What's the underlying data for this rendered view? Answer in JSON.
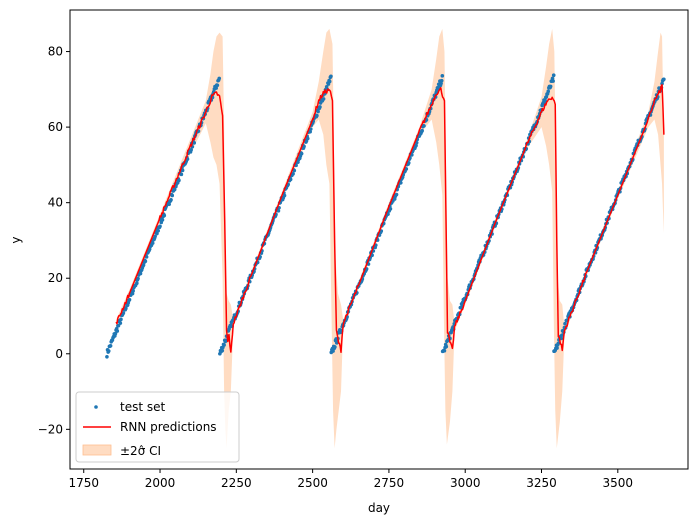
{
  "chart_data": {
    "type": "line",
    "xlabel": "day",
    "ylabel": "y",
    "xlim": [
      1705,
      3730
    ],
    "ylim": [
      -30.5,
      91
    ],
    "xticks": [
      1750,
      2000,
      2250,
      2500,
      2750,
      3000,
      3250,
      3500
    ],
    "yticks": [
      -20,
      0,
      20,
      40,
      60,
      80
    ],
    "grid": false,
    "legend_position": "lower-left",
    "colors": {
      "test_set": "#1f77b4",
      "rnn": "#ff0000",
      "ci_fill": "#ffbf90"
    },
    "cycles": [
      {
        "start": 1826,
        "end": 2195,
        "peak": 73
      },
      {
        "start": 2196,
        "end": 2560,
        "peak": 73
      },
      {
        "start": 2561,
        "end": 2925,
        "peak": 73
      },
      {
        "start": 2926,
        "end": 3290,
        "peak": 73
      },
      {
        "start": 3291,
        "end": 3652,
        "peak": 73
      }
    ],
    "series": [
      {
        "name": "test set",
        "kind": "scatter",
        "description_points": [
          [
            1826,
            0.5
          ],
          [
            1900,
            15.5
          ],
          [
            2000,
            36
          ],
          [
            2100,
            56
          ],
          [
            2195,
            73
          ],
          [
            2196,
            0.5
          ],
          [
            2300,
            21.5
          ],
          [
            2400,
            42
          ],
          [
            2500,
            62
          ],
          [
            2560,
            73
          ],
          [
            2561,
            0.5
          ],
          [
            2650,
            18.5
          ],
          [
            2750,
            39
          ],
          [
            2850,
            59
          ],
          [
            2925,
            73
          ],
          [
            2926,
            0.5
          ],
          [
            3000,
            15.5
          ],
          [
            3100,
            36
          ],
          [
            3200,
            56
          ],
          [
            3290,
            73
          ],
          [
            3291,
            0.5
          ],
          [
            3400,
            22.5
          ],
          [
            3500,
            43
          ],
          [
            3600,
            63
          ],
          [
            3652,
            73
          ]
        ]
      },
      {
        "name": "RNN predictions",
        "kind": "line",
        "points": [
          [
            1856,
            8
          ],
          [
            1900,
            16
          ],
          [
            2000,
            36
          ],
          [
            2100,
            55
          ],
          [
            2150,
            64
          ],
          [
            2170,
            68
          ],
          [
            2185,
            69
          ],
          [
            2195,
            68
          ],
          [
            2205,
            63
          ],
          [
            2212,
            35
          ],
          [
            2218,
            6
          ],
          [
            2222,
            3
          ],
          [
            2226,
            5
          ],
          [
            2232,
            0
          ],
          [
            2240,
            8
          ],
          [
            2300,
            21
          ],
          [
            2400,
            42
          ],
          [
            2500,
            62
          ],
          [
            2520,
            67
          ],
          [
            2535,
            69
          ],
          [
            2555,
            70
          ],
          [
            2565,
            67
          ],
          [
            2572,
            30
          ],
          [
            2578,
            6
          ],
          [
            2585,
            3
          ],
          [
            2593,
            1
          ],
          [
            2600,
            8
          ],
          [
            2650,
            18
          ],
          [
            2750,
            39
          ],
          [
            2850,
            59
          ],
          [
            2890,
            66
          ],
          [
            2905,
            69
          ],
          [
            2920,
            70
          ],
          [
            2932,
            67
          ],
          [
            2938,
            30
          ],
          [
            2942,
            6
          ],
          [
            2950,
            3
          ],
          [
            2958,
            1
          ],
          [
            2965,
            7
          ],
          [
            3000,
            14
          ],
          [
            3100,
            35
          ],
          [
            3200,
            55
          ],
          [
            3250,
            64
          ],
          [
            3270,
            67
          ],
          [
            3285,
            68
          ],
          [
            3295,
            66
          ],
          [
            3300,
            30
          ],
          [
            3305,
            5
          ],
          [
            3312,
            3
          ],
          [
            3318,
            1
          ],
          [
            3325,
            6
          ],
          [
            3400,
            22
          ],
          [
            3500,
            42
          ],
          [
            3600,
            62
          ],
          [
            3620,
            67
          ],
          [
            3635,
            69
          ],
          [
            3645,
            71
          ],
          [
            3648,
            65
          ],
          [
            3651,
            58
          ]
        ]
      },
      {
        "name": "±2σ̂ CI",
        "kind": "area",
        "upper": [
          [
            1856,
            9
          ],
          [
            1900,
            17
          ],
          [
            2000,
            37
          ],
          [
            2100,
            57
          ],
          [
            2150,
            67
          ],
          [
            2165,
            74
          ],
          [
            2175,
            80
          ],
          [
            2185,
            84
          ],
          [
            2195,
            85
          ],
          [
            2205,
            84
          ],
          [
            2210,
            60
          ],
          [
            2214,
            30
          ],
          [
            2218,
            16
          ],
          [
            2225,
            14
          ],
          [
            2232,
            13
          ],
          [
            2240,
            9
          ],
          [
            2300,
            22
          ],
          [
            2400,
            43
          ],
          [
            2500,
            64
          ],
          [
            2520,
            72
          ],
          [
            2535,
            80
          ],
          [
            2545,
            85
          ],
          [
            2555,
            86
          ],
          [
            2565,
            82
          ],
          [
            2570,
            55
          ],
          [
            2575,
            25
          ],
          [
            2583,
            16
          ],
          [
            2593,
            13
          ],
          [
            2600,
            9
          ],
          [
            2650,
            19
          ],
          [
            2750,
            40
          ],
          [
            2850,
            60
          ],
          [
            2890,
            70
          ],
          [
            2905,
            78
          ],
          [
            2915,
            84
          ],
          [
            2925,
            86
          ],
          [
            2932,
            80
          ],
          [
            2937,
            50
          ],
          [
            2942,
            20
          ],
          [
            2950,
            14
          ],
          [
            2958,
            13
          ],
          [
            2965,
            8
          ],
          [
            3000,
            15
          ],
          [
            3100,
            36
          ],
          [
            3200,
            56
          ],
          [
            3250,
            68
          ],
          [
            3265,
            76
          ],
          [
            3275,
            82
          ],
          [
            3285,
            86
          ],
          [
            3292,
            80
          ],
          [
            3298,
            45
          ],
          [
            3303,
            20
          ],
          [
            3310,
            14
          ],
          [
            3318,
            13
          ],
          [
            3325,
            7
          ],
          [
            3400,
            23
          ],
          [
            3500,
            43
          ],
          [
            3600,
            64
          ],
          [
            3620,
            72
          ],
          [
            3632,
            80
          ],
          [
            3640,
            85
          ],
          [
            3645,
            84
          ],
          [
            3648,
            70
          ],
          [
            3651,
            58
          ]
        ],
        "lower": [
          [
            1856,
            7
          ],
          [
            1900,
            15
          ],
          [
            2000,
            35
          ],
          [
            2100,
            53
          ],
          [
            2150,
            61
          ],
          [
            2165,
            56
          ],
          [
            2175,
            52
          ],
          [
            2185,
            50
          ],
          [
            2195,
            45
          ],
          [
            2205,
            20
          ],
          [
            2210,
            -10
          ],
          [
            2214,
            -20
          ],
          [
            2218,
            -25
          ],
          [
            2225,
            -15
          ],
          [
            2232,
            -10
          ],
          [
            2240,
            7
          ],
          [
            2300,
            20
          ],
          [
            2400,
            41
          ],
          [
            2500,
            60
          ],
          [
            2520,
            62
          ],
          [
            2535,
            58
          ],
          [
            2545,
            50
          ],
          [
            2555,
            45
          ],
          [
            2562,
            10
          ],
          [
            2567,
            -15
          ],
          [
            2572,
            -25
          ],
          [
            2578,
            -20
          ],
          [
            2593,
            -10
          ],
          [
            2600,
            7
          ],
          [
            2650,
            17
          ],
          [
            2750,
            38
          ],
          [
            2850,
            58
          ],
          [
            2890,
            62
          ],
          [
            2905,
            56
          ],
          [
            2915,
            50
          ],
          [
            2925,
            42
          ],
          [
            2930,
            10
          ],
          [
            2935,
            -15
          ],
          [
            2940,
            -24
          ],
          [
            2950,
            -18
          ],
          [
            2958,
            -10
          ],
          [
            2965,
            6
          ],
          [
            3000,
            13
          ],
          [
            3100,
            34
          ],
          [
            3200,
            54
          ],
          [
            3250,
            60
          ],
          [
            3265,
            55
          ],
          [
            3275,
            50
          ],
          [
            3285,
            43
          ],
          [
            3290,
            10
          ],
          [
            3295,
            -15
          ],
          [
            3300,
            -25
          ],
          [
            3310,
            -18
          ],
          [
            3318,
            -10
          ],
          [
            3325,
            5
          ],
          [
            3400,
            21
          ],
          [
            3500,
            41
          ],
          [
            3600,
            60
          ],
          [
            3620,
            62
          ],
          [
            3632,
            58
          ],
          [
            3640,
            50
          ],
          [
            3645,
            45
          ],
          [
            3648,
            38
          ],
          [
            3651,
            32
          ]
        ]
      }
    ]
  }
}
